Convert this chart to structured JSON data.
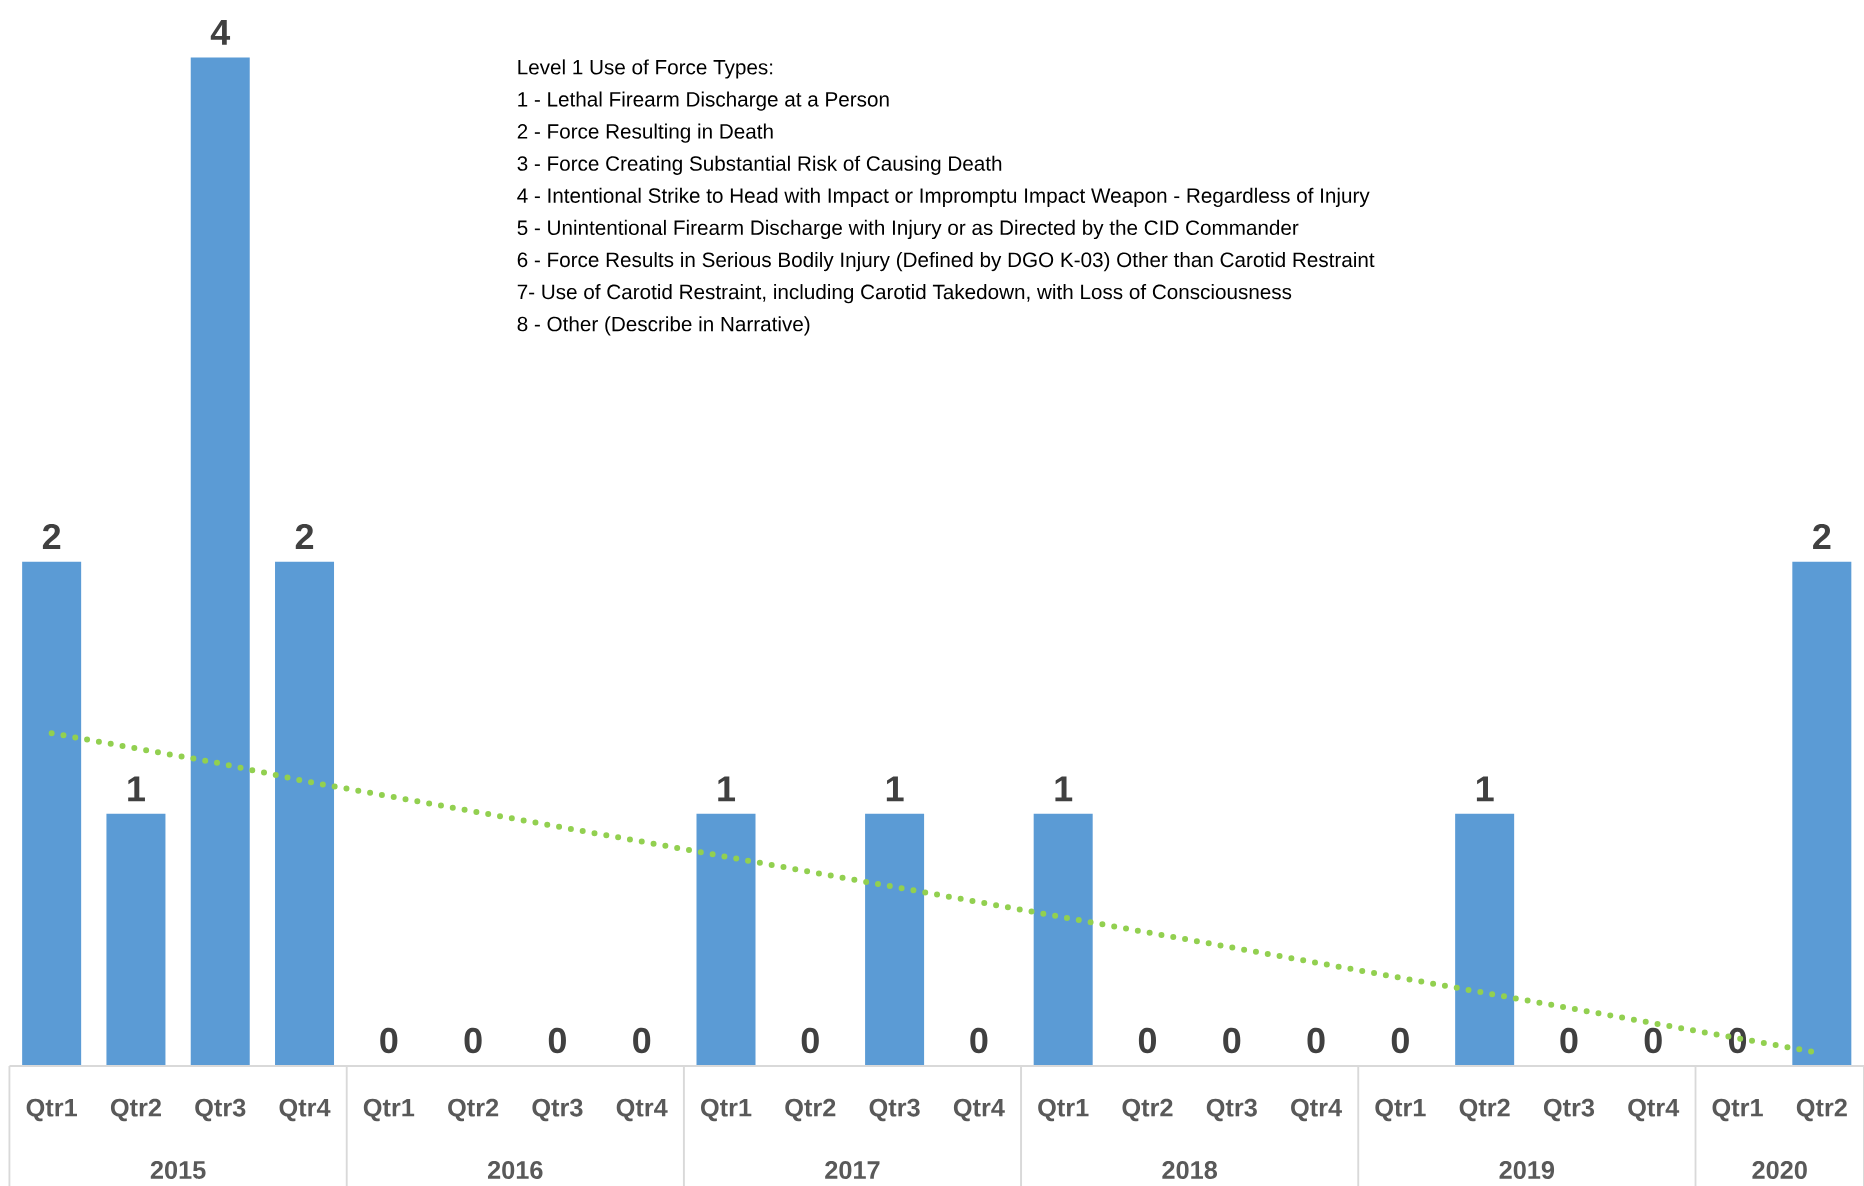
{
  "chart_data": {
    "type": "bar",
    "categories": [
      "Qtr1",
      "Qtr2",
      "Qtr3",
      "Qtr4",
      "Qtr1",
      "Qtr2",
      "Qtr3",
      "Qtr4",
      "Qtr1",
      "Qtr2",
      "Qtr3",
      "Qtr4",
      "Qtr1",
      "Qtr2",
      "Qtr3",
      "Qtr4",
      "Qtr1",
      "Qtr2",
      "Qtr3",
      "Qtr4",
      "Qtr1",
      "Qtr2"
    ],
    "series": [
      {
        "color": "#5b9bd5",
        "values": [
          2,
          1,
          4,
          2,
          0,
          0,
          0,
          0,
          1,
          0,
          1,
          0,
          1,
          0,
          0,
          0,
          0,
          1,
          0,
          0,
          0,
          2
        ],
        "value_labels": [
          "2",
          "1",
          "4",
          "2",
          "0",
          "0",
          "0",
          "0",
          "1",
          "0",
          "1",
          "0",
          "1",
          "0",
          "0",
          "0",
          "0",
          "1",
          "0",
          "0",
          "0",
          "2"
        ]
      },
      {
        "type": "line",
        "color": "#92d050",
        "line_style": "dotted",
        "values": [
          1.32,
          1.26,
          1.2,
          1.13,
          1.07,
          1.01,
          0.95,
          0.89,
          0.83,
          0.77,
          0.71,
          0.65,
          0.59,
          0.53,
          0.47,
          0.41,
          0.35,
          0.29,
          0.23,
          0.17,
          0.11,
          0.05
        ]
      }
    ],
    "annotations": [
      "2015",
      "2016",
      "2017",
      "2018",
      "2019",
      "2020",
      "Level 1 Use of Force Types:",
      "1 - Lethal Firearm Discharge at a Person",
      "2 - Force Resulting in Death",
      "3 - Force Creating Substantial Risk of Causing Death",
      "4 - Intentional Strike to Head with Impact or Impromptu Impact Weapon - Regardless of Injury",
      "5 - Unintentional Firearm Discharge with Injury or as Directed by the CID Commander",
      "6 - Force Results in Serious Bodily Injury (Defined by DGO K-03) Other than Carotid Restraint",
      "7- Use of Carotid Restraint, including Carotid Takedown, with Loss of Consciousness",
      "8 - Other (Describe in Narrative)"
    ]
  }
}
